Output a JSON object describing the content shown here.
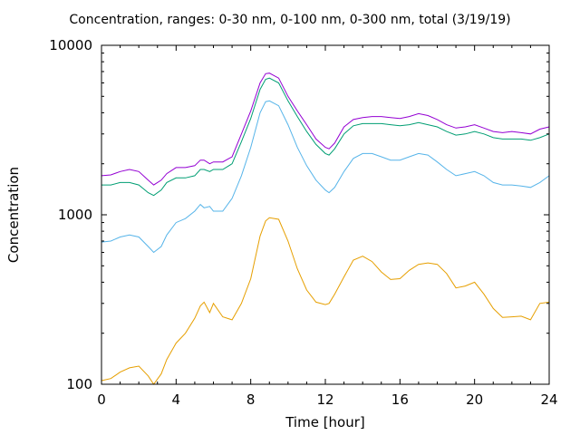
{
  "chart_data": {
    "type": "line",
    "title": "Concentration, ranges: 0-30 nm, 0-100 nm, 0-300 nm, total (3/19/19)",
    "xlabel": "Time [hour]",
    "ylabel": "Concentration",
    "xlim": [
      0,
      24
    ],
    "ylim": [
      100,
      10000
    ],
    "yscale": "log",
    "grid": false,
    "x_ticks": [
      0,
      4,
      8,
      12,
      16,
      20,
      24
    ],
    "x_tick_labels": [
      "0",
      "4",
      "8",
      "12",
      "16",
      "20",
      "24"
    ],
    "y_ticks": [
      100,
      1000,
      10000
    ],
    "y_tick_labels": [
      "100",
      "1000",
      "10000"
    ],
    "x": [
      0,
      0.5,
      1,
      1.5,
      2,
      2.5,
      2.8,
      3.2,
      3.5,
      4,
      4.5,
      5,
      5.3,
      5.5,
      5.8,
      6,
      6.5,
      7,
      7.5,
      8,
      8.5,
      8.8,
      9,
      9.5,
      10,
      10.5,
      11,
      11.5,
      12,
      12.2,
      12.5,
      13,
      13.5,
      14,
      14.5,
      15,
      15.5,
      16,
      16.5,
      17,
      17.5,
      18,
      18.5,
      19,
      19.5,
      20,
      20.5,
      21,
      21.5,
      22,
      22.5,
      23,
      23.5,
      24
    ],
    "series": [
      {
        "color": "#e69f00",
        "values": [
          105,
          108,
          118,
          125,
          128,
          112,
          100,
          115,
          140,
          175,
          200,
          245,
          290,
          305,
          265,
          300,
          250,
          240,
          300,
          420,
          750,
          920,
          960,
          940,
          700,
          480,
          360,
          305,
          295,
          300,
          340,
          430,
          540,
          570,
          530,
          460,
          415,
          420,
          470,
          510,
          520,
          510,
          450,
          370,
          380,
          400,
          340,
          280,
          248,
          250,
          252,
          240,
          300,
          305
        ]
      },
      {
        "color": "#56b4e9",
        "values": [
          690,
          700,
          740,
          760,
          740,
          650,
          600,
          650,
          760,
          900,
          950,
          1050,
          1150,
          1100,
          1120,
          1050,
          1050,
          1250,
          1700,
          2500,
          4000,
          4650,
          4700,
          4400,
          3400,
          2500,
          1950,
          1600,
          1400,
          1350,
          1450,
          1800,
          2150,
          2300,
          2300,
          2200,
          2100,
          2100,
          2200,
          2300,
          2250,
          2050,
          1850,
          1700,
          1750,
          1800,
          1700,
          1550,
          1500,
          1500,
          1480,
          1450,
          1550,
          1700
        ]
      },
      {
        "color": "#009e73",
        "values": [
          1500,
          1500,
          1550,
          1550,
          1500,
          1350,
          1300,
          1400,
          1550,
          1650,
          1650,
          1700,
          1850,
          1850,
          1800,
          1850,
          1850,
          2000,
          2700,
          3700,
          5500,
          6300,
          6400,
          6000,
          4700,
          3800,
          3100,
          2600,
          2300,
          2250,
          2450,
          3000,
          3350,
          3450,
          3450,
          3450,
          3400,
          3350,
          3400,
          3500,
          3400,
          3300,
          3100,
          2950,
          3000,
          3100,
          3000,
          2850,
          2800,
          2800,
          2800,
          2750,
          2850,
          3000
        ]
      },
      {
        "color": "#9400d3",
        "values": [
          1700,
          1720,
          1800,
          1850,
          1800,
          1600,
          1500,
          1600,
          1750,
          1900,
          1900,
          1950,
          2100,
          2100,
          2000,
          2050,
          2050,
          2200,
          3000,
          4100,
          6000,
          6800,
          6850,
          6400,
          5000,
          4100,
          3400,
          2800,
          2500,
          2450,
          2650,
          3300,
          3650,
          3750,
          3800,
          3800,
          3750,
          3700,
          3800,
          3950,
          3850,
          3650,
          3400,
          3250,
          3300,
          3400,
          3250,
          3100,
          3050,
          3100,
          3050,
          3000,
          3200,
          3300
        ]
      }
    ]
  }
}
